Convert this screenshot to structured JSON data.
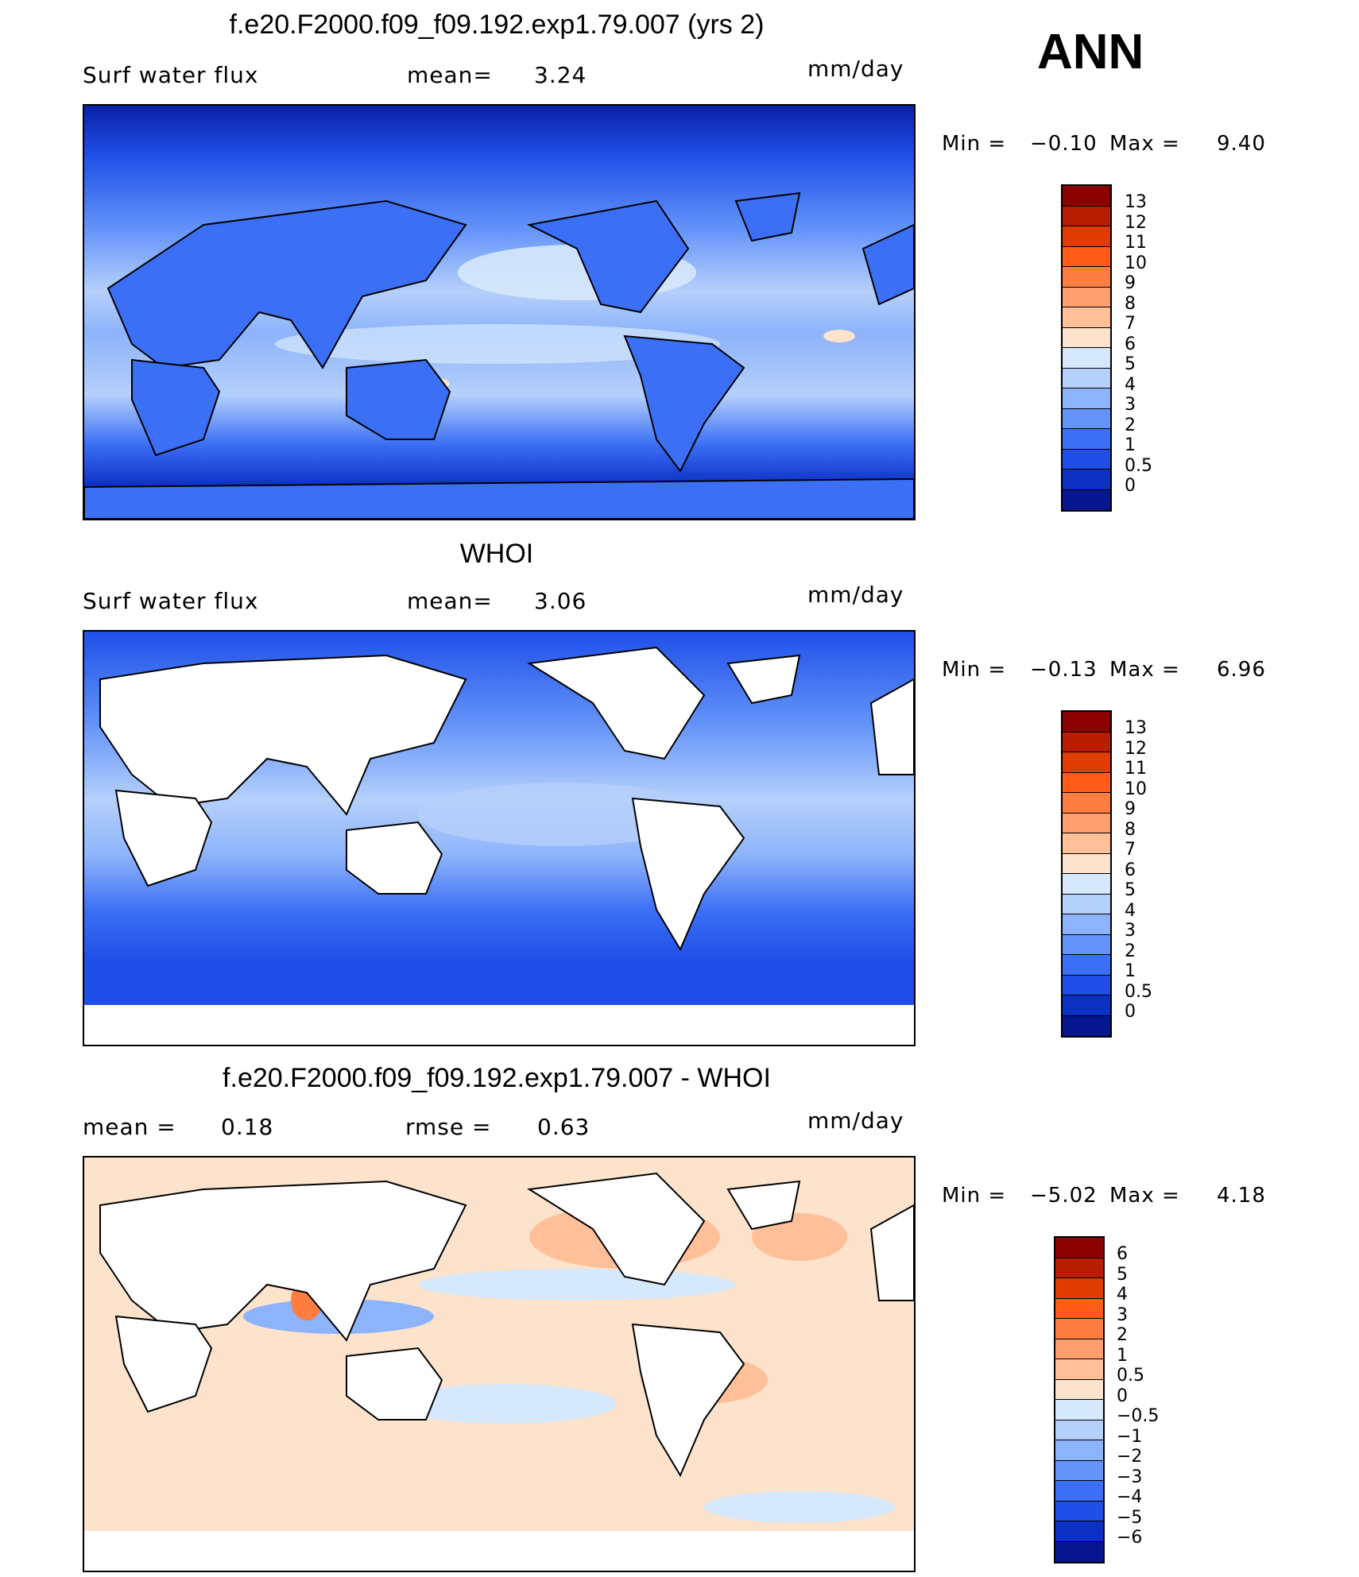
{
  "season": "ANN",
  "panels": [
    {
      "id": "model",
      "title": "f.e20.F2000.f09_f09.192.exp1.79.007 (yrs 2)",
      "left_label": "Surf water flux",
      "mid_label": "mean=",
      "mid_value": "3.24",
      "units": "mm/day",
      "min_label": "Min =",
      "min_value": "−0.10",
      "max_label": "Max =",
      "max_value": "9.40",
      "colorbar_labels": [
        "13",
        "12",
        "11",
        "10",
        "9",
        "8",
        "7",
        "6",
        "5",
        "4",
        "3",
        "2",
        "1",
        "0.5",
        "0"
      ],
      "colorbar_colors": [
        "#8b0000",
        "#b81d00",
        "#e03c00",
        "#ff5c1a",
        "#ff7d40",
        "#ff9e6e",
        "#ffbf99",
        "#fde3cc",
        "#d6e8fb",
        "#b5d0fb",
        "#8db3fb",
        "#6494f9",
        "#3b6ff5",
        "#1f4fe8",
        "#0d30c4",
        "#05168f"
      ]
    },
    {
      "id": "obs",
      "title": "WHOI",
      "left_label": "Surf water flux",
      "mid_label": "mean=",
      "mid_value": "3.06",
      "units": "mm/day",
      "min_label": "Min =",
      "min_value": "−0.13",
      "max_label": "Max =",
      "max_value": "6.96",
      "colorbar_labels": [
        "13",
        "12",
        "11",
        "10",
        "9",
        "8",
        "7",
        "6",
        "5",
        "4",
        "3",
        "2",
        "1",
        "0.5",
        "0"
      ],
      "colorbar_colors": [
        "#8b0000",
        "#b81d00",
        "#e03c00",
        "#ff5c1a",
        "#ff7d40",
        "#ff9e6e",
        "#ffbf99",
        "#fde3cc",
        "#d6e8fb",
        "#b5d0fb",
        "#8db3fb",
        "#6494f9",
        "#3b6ff5",
        "#1f4fe8",
        "#0d30c4",
        "#05168f"
      ]
    },
    {
      "id": "diff",
      "title": "f.e20.F2000.f09_f09.192.exp1.79.007 - WHOI",
      "left_label": "mean =",
      "left_value": "0.18",
      "mid_label": "rmse =",
      "mid_value": "0.63",
      "units": "mm/day",
      "min_label": "Min =",
      "min_value": "−5.02",
      "max_label": "Max =",
      "max_value": "4.18",
      "colorbar_labels": [
        "6",
        "5",
        "4",
        "3",
        "2",
        "1",
        "0.5",
        "0",
        "−0.5",
        "−1",
        "−2",
        "−3",
        "−4",
        "−5",
        "−6"
      ],
      "colorbar_colors": [
        "#8b0000",
        "#b81d00",
        "#e03c00",
        "#ff5c1a",
        "#ff7d40",
        "#ff9e6e",
        "#ffbf99",
        "#fde3cc",
        "#d6e8fb",
        "#b5d0fb",
        "#8db3fb",
        "#6494f9",
        "#3b6ff5",
        "#1f4fe8",
        "#0d30c4",
        "#05168f"
      ]
    }
  ]
}
